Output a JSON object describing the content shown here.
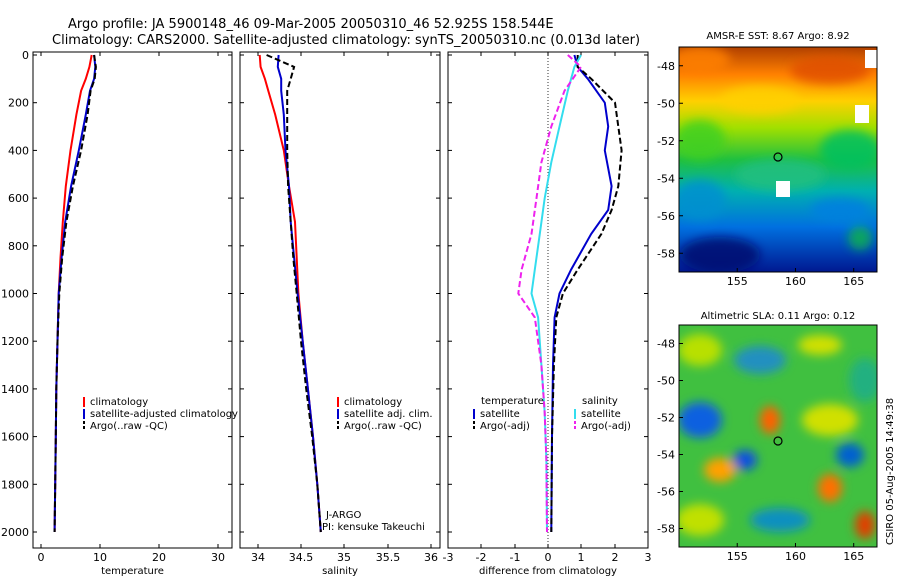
{
  "header": {
    "line1": "Argo profile: JA 5900148_46 09-Mar-2005 20050310_46 52.925S 158.544E",
    "line2": "Climatology: CARS2000. Satellite-adjusted climatology: synTS_20050310.nc (0.013d later)"
  },
  "side_credit": "CSIRO 05-Aug-2005 14:49:38",
  "colors": {
    "climatology": "#ff0000",
    "satellite": "#0000cc",
    "argo": "#000000",
    "temp_diff_sat": "#33ddee",
    "temp_diff_argo": "#ee22ee",
    "zero_line": "#000000"
  },
  "chart_data": [
    {
      "type": "line",
      "xlabel": "temperature",
      "ylabel": "",
      "xlim": [
        -2,
        32
      ],
      "ylim": [
        2050,
        0
      ],
      "xticks": [
        "0",
        "10",
        "20",
        "30"
      ],
      "yticks": [
        "0",
        "200",
        "400",
        "600",
        "800",
        "1000",
        "1200",
        "1400",
        "1600",
        "1800",
        "2000"
      ],
      "legend": {
        "placement": "lower-right",
        "entries": [
          "climatology",
          "satellite-adjusted climatology",
          "Argo(..raw -QC)"
        ]
      },
      "series": [
        {
          "name": "climatology",
          "color": "#ff0000",
          "style": "solid",
          "x": [
            8.6,
            8.2,
            7.6,
            6.8,
            6.0,
            5.0,
            4.2,
            3.7,
            3.3,
            3.0,
            2.8,
            2.6,
            2.5,
            2.4,
            2.3
          ],
          "y": [
            0,
            50,
            100,
            150,
            250,
            400,
            550,
            700,
            850,
            1000,
            1200,
            1400,
            1600,
            1800,
            2000
          ]
        },
        {
          "name": "satellite-adjusted climatology",
          "color": "#0000cc",
          "style": "solid",
          "x": [
            9.0,
            9.2,
            9.0,
            8.3,
            7.6,
            6.4,
            5.1,
            4.1,
            3.5,
            3.0,
            2.8,
            2.6,
            2.5,
            2.4,
            2.3
          ],
          "y": [
            0,
            50,
            100,
            150,
            250,
            400,
            550,
            700,
            850,
            1000,
            1200,
            1400,
            1600,
            1800,
            2000
          ]
        },
        {
          "name": "Argo(..raw -QC)",
          "color": "#000000",
          "style": "dashed",
          "x": [
            9.0,
            9.3,
            9.1,
            8.4,
            7.9,
            6.8,
            5.4,
            4.3,
            3.6,
            3.1,
            2.8,
            2.6,
            2.5,
            2.4,
            2.3
          ],
          "y": [
            0,
            50,
            100,
            150,
            250,
            400,
            550,
            700,
            850,
            1000,
            1200,
            1400,
            1600,
            1800,
            2000
          ]
        }
      ]
    },
    {
      "type": "line",
      "xlabel": "salinity",
      "ylabel": "",
      "xlim": [
        33.8,
        36.05
      ],
      "ylim": [
        2050,
        0
      ],
      "xticks": [
        "34",
        "34.5",
        "35",
        "35.5",
        "36"
      ],
      "legend": {
        "placement": "lower-right",
        "entries": [
          "climatology",
          "satellite adj. clim.",
          "Argo(..raw -QC)"
        ]
      },
      "annotations": [
        "J-ARGO",
        "PI: kensuke Takeuchi"
      ],
      "series": [
        {
          "name": "climatology",
          "color": "#ff0000",
          "style": "solid",
          "x": [
            34.02,
            34.03,
            34.08,
            34.12,
            34.2,
            34.3,
            34.36,
            34.43,
            34.45,
            34.47,
            34.52,
            34.58,
            34.64,
            34.69,
            34.73
          ],
          "y": [
            0,
            50,
            100,
            150,
            250,
            400,
            550,
            700,
            850,
            1000,
            1200,
            1400,
            1600,
            1800,
            2000
          ]
        },
        {
          "name": "satellite adj. clim.",
          "color": "#0000cc",
          "style": "solid",
          "x": [
            34.24,
            34.23,
            34.27,
            34.27,
            34.3,
            34.32,
            34.36,
            34.38,
            34.42,
            34.46,
            34.52,
            34.58,
            34.64,
            34.69,
            34.73
          ],
          "y": [
            0,
            50,
            100,
            150,
            250,
            400,
            550,
            700,
            850,
            1000,
            1200,
            1400,
            1600,
            1800,
            2000
          ]
        },
        {
          "name": "Argo(..raw -QC)",
          "color": "#000000",
          "style": "dashed",
          "x": [
            34.1,
            34.42,
            34.38,
            34.34,
            34.34,
            34.34,
            34.35,
            34.38,
            34.41,
            34.45,
            34.5,
            34.56,
            34.63,
            34.69,
            34.73
          ],
          "y": [
            0,
            50,
            100,
            150,
            250,
            400,
            550,
            700,
            850,
            1000,
            1200,
            1400,
            1600,
            1800,
            2000
          ]
        }
      ]
    },
    {
      "type": "line",
      "xlabel": "difference from climatology",
      "ylabel": "",
      "xlim": [
        -3,
        3
      ],
      "ylim": [
        2050,
        0
      ],
      "xticks": [
        "-3",
        "-2",
        "-1",
        "0",
        "1",
        "2",
        "3"
      ],
      "legend": {
        "placement": "lower",
        "entries": [
          {
            "group": "temperature",
            "items": [
              "satellite",
              "Argo(-adj)"
            ]
          },
          {
            "group": "salinity",
            "items": [
              "satellite",
              "Argo(-adj)"
            ]
          }
        ]
      },
      "series": [
        {
          "name": "temperature satellite",
          "color": "#0000cc",
          "style": "solid",
          "x": [
            0.8,
            0.9,
            1.2,
            1.7,
            1.8,
            1.7,
            1.9,
            1.8,
            1.3,
            0.7,
            0.35,
            0.2,
            0.15,
            0.12,
            0.1
          ],
          "y": [
            0,
            50,
            100,
            200,
            300,
            400,
            550,
            650,
            750,
            900,
            1000,
            1100,
            1300,
            1600,
            2000
          ]
        },
        {
          "name": "temperature Argo(-adj)",
          "color": "#000000",
          "style": "dashed",
          "x": [
            0.9,
            0.9,
            1.3,
            2.0,
            2.1,
            2.2,
            2.1,
            1.9,
            1.6,
            0.9,
            0.45,
            0.25,
            0.18,
            0.12,
            0.1
          ],
          "y": [
            0,
            50,
            100,
            200,
            300,
            400,
            550,
            650,
            750,
            900,
            1000,
            1100,
            1300,
            1600,
            2000
          ]
        },
        {
          "name": "salinity satellite",
          "color": "#33ddee",
          "style": "solid",
          "x": [
            1.0,
            0.8,
            0.6,
            0.35,
            0.1,
            -0.1,
            -0.25,
            -0.4,
            -0.5,
            -0.3,
            -0.2,
            -0.1,
            -0.05,
            -0.03
          ],
          "y": [
            0,
            50,
            150,
            300,
            450,
            600,
            750,
            900,
            1000,
            1100,
            1300,
            1500,
            1700,
            2000
          ]
        },
        {
          "name": "salinity Argo(-adj)",
          "color": "#ee22ee",
          "style": "dashed",
          "x": [
            0.6,
            1.0,
            0.5,
            0.1,
            -0.2,
            -0.35,
            -0.5,
            -0.8,
            -0.9,
            -0.4,
            -0.2,
            -0.1,
            -0.05,
            -0.03
          ],
          "y": [
            0,
            50,
            150,
            300,
            450,
            600,
            750,
            900,
            1000,
            1100,
            1300,
            1500,
            1700,
            2000
          ]
        }
      ]
    },
    {
      "type": "heatmap",
      "title": "AMSR-E SST: 8.67 Argo: 8.92",
      "xlim": [
        150,
        167
      ],
      "ylim": [
        -59,
        -47
      ],
      "xticks": [
        "155",
        "160",
        "165"
      ],
      "yticks": [
        "-48",
        "-50",
        "-52",
        "-54",
        "-56",
        "-58"
      ],
      "marker": {
        "x": 158.5,
        "y": -52.9
      }
    },
    {
      "type": "heatmap",
      "title": "Altimetric SLA: 0.11 Argo: 0.12",
      "xlim": [
        150,
        167
      ],
      "ylim": [
        -59,
        -47
      ],
      "xticks": [
        "155",
        "160",
        "165"
      ],
      "yticks": [
        "-48",
        "-50",
        "-52",
        "-54",
        "-56",
        "-58"
      ],
      "marker": {
        "x": 158.5,
        "y": -52.9
      }
    }
  ]
}
